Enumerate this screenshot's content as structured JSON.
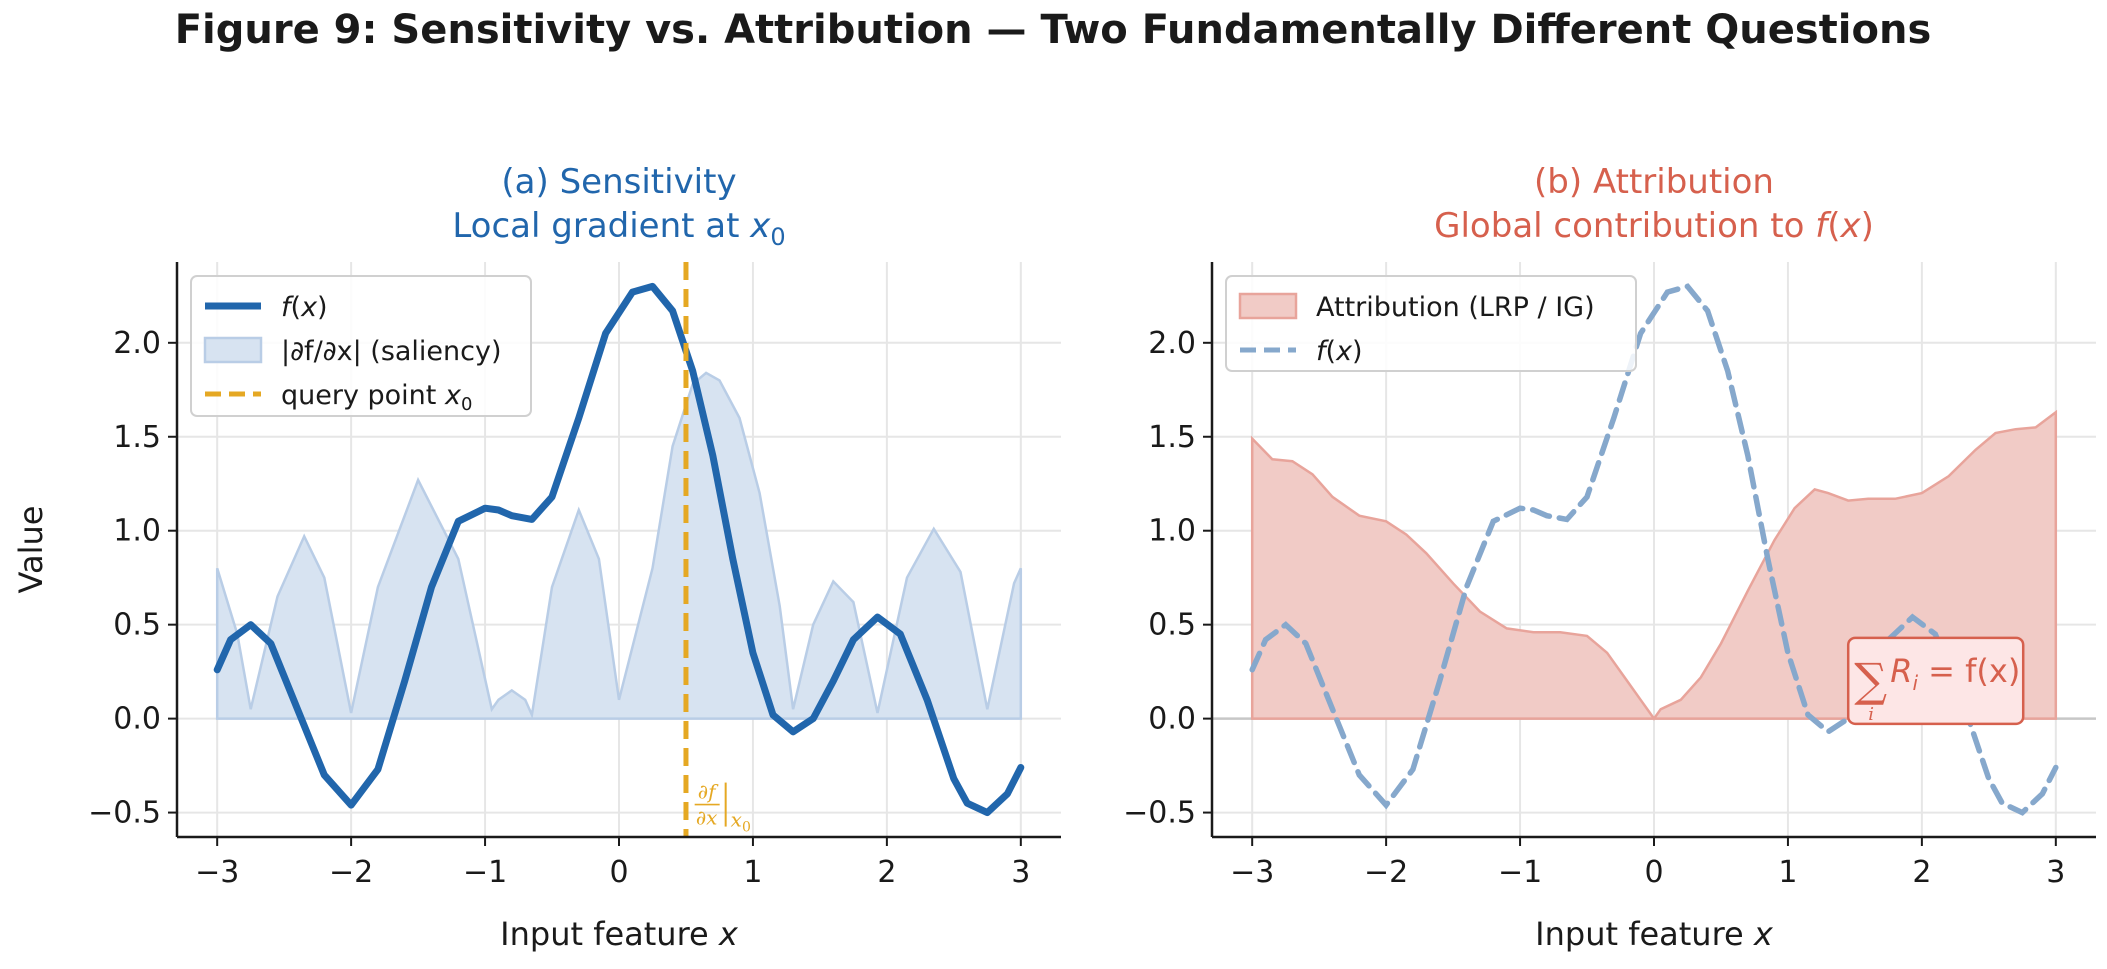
{
  "figure_title": "Figure 9: Sensitivity vs. Attribution — Two Fundamentally Different Questions",
  "colors": {
    "f_line": "#2166ac",
    "saliency_fill": "#d7e3f1",
    "saliency_edge": "#b9cde6",
    "query_line": "#e5a823",
    "attr_fill": "#f1cbc6",
    "attr_edge": "#e8a49b",
    "f_dashed": "#86a8cc",
    "title_a": "#2166ac",
    "title_b": "#d6604d",
    "box_fill": "#fde6e6",
    "box_edge": "#d6604d"
  },
  "chart_data": [
    {
      "type": "line",
      "panel": "a",
      "title_line1": "(a) Sensitivity",
      "title_line2_text": "Local gradient at ",
      "title_line2_math": "x",
      "title_line2_sub": "0",
      "xlabel_text": "Input feature ",
      "xlabel_math": "x",
      "ylabel": "Value",
      "xlim": [
        -3.3,
        3.3
      ],
      "ylim": [
        -0.63,
        2.43
      ],
      "xticks": [
        -3,
        -2,
        -1,
        0,
        1,
        2,
        3
      ],
      "xtick_labels": [
        "−3",
        "−2",
        "−1",
        "0",
        "1",
        "2",
        "3"
      ],
      "yticks": [
        -0.5,
        0.0,
        0.5,
        1.0,
        1.5,
        2.0
      ],
      "ytick_labels": [
        "−0.5",
        "0.0",
        "0.5",
        "1.0",
        "1.5",
        "2.0"
      ],
      "grid": true,
      "legend_position": "top-left",
      "legend": [
        {
          "label": "f(x)",
          "style": "line"
        },
        {
          "label": "|∂f/∂x| (saliency)",
          "style": "fill"
        },
        {
          "label": "query point x",
          "label_sub": "0",
          "style": "dashed"
        }
      ],
      "series": [
        {
          "name": "f(x)",
          "style": "solid",
          "x": [
            -3.0,
            -2.9,
            -2.75,
            -2.6,
            -2.4,
            -2.2,
            -2.0,
            -1.8,
            -1.6,
            -1.4,
            -1.2,
            -1.0,
            -0.9,
            -0.8,
            -0.65,
            -0.5,
            -0.3,
            -0.1,
            0.1,
            0.25,
            0.4,
            0.55,
            0.7,
            0.85,
            1.0,
            1.15,
            1.3,
            1.45,
            1.6,
            1.75,
            1.93,
            2.1,
            2.3,
            2.5,
            2.6,
            2.75,
            2.9,
            3.0
          ],
          "values": [
            0.26,
            0.42,
            0.5,
            0.4,
            0.05,
            -0.3,
            -0.46,
            -0.27,
            0.2,
            0.7,
            1.05,
            1.12,
            1.11,
            1.08,
            1.06,
            1.18,
            1.6,
            2.05,
            2.27,
            2.3,
            2.17,
            1.85,
            1.4,
            0.85,
            0.35,
            0.02,
            -0.07,
            0.0,
            0.2,
            0.42,
            0.54,
            0.45,
            0.1,
            -0.32,
            -0.45,
            -0.5,
            -0.4,
            -0.26
          ]
        },
        {
          "name": "|∂f/∂x| (saliency)",
          "style": "fill",
          "x": [
            -3.0,
            -2.85,
            -2.75,
            -2.55,
            -2.35,
            -2.2,
            -2.0,
            -1.8,
            -1.5,
            -1.2,
            -0.95,
            -0.9,
            -0.8,
            -0.7,
            -0.65,
            -0.5,
            -0.3,
            -0.15,
            0.0,
            0.25,
            0.4,
            0.55,
            0.65,
            0.75,
            0.9,
            1.05,
            1.2,
            1.3,
            1.45,
            1.6,
            1.75,
            1.93,
            2.15,
            2.35,
            2.55,
            2.75,
            2.95,
            3.0
          ],
          "values": [
            0.8,
            0.45,
            0.05,
            0.65,
            0.97,
            0.75,
            0.03,
            0.7,
            1.27,
            0.85,
            0.05,
            0.1,
            0.15,
            0.1,
            0.02,
            0.7,
            1.11,
            0.85,
            0.1,
            0.8,
            1.45,
            1.78,
            1.84,
            1.8,
            1.6,
            1.2,
            0.6,
            0.05,
            0.5,
            0.73,
            0.62,
            0.03,
            0.75,
            1.01,
            0.78,
            0.05,
            0.72,
            0.8
          ]
        }
      ],
      "query_x": 0.5,
      "annotation": {
        "num": "∂f",
        "den": "∂x",
        "sub": "x",
        "sub2": "0",
        "x": 0.55,
        "y": -0.5
      }
    },
    {
      "type": "area",
      "panel": "b",
      "title_line1": "(b) Attribution",
      "title_line2_text": "Global contribution to ",
      "title_line2_math": "f",
      "title_line2_tail": "(x)",
      "xlabel_text": "Input feature ",
      "xlabel_math": "x",
      "xlim": [
        -3.3,
        3.3
      ],
      "ylim": [
        -0.63,
        2.43
      ],
      "xticks": [
        -3,
        -2,
        -1,
        0,
        1,
        2,
        3
      ],
      "xtick_labels": [
        "−3",
        "−2",
        "−1",
        "0",
        "1",
        "2",
        "3"
      ],
      "yticks": [
        -0.5,
        0.0,
        0.5,
        1.0,
        1.5,
        2.0
      ],
      "ytick_labels": [
        "−0.5",
        "0.0",
        "0.5",
        "1.0",
        "1.5",
        "2.0"
      ],
      "grid": true,
      "legend_position": "top-left",
      "legend": [
        {
          "label": "Attribution (LRP / IG)",
          "style": "fill"
        },
        {
          "label": "f(x)",
          "style": "dashed"
        }
      ],
      "series": [
        {
          "name": "Attribution (LRP / IG)",
          "style": "fill",
          "x": [
            -3.0,
            -2.85,
            -2.7,
            -2.55,
            -2.4,
            -2.2,
            -2.0,
            -1.85,
            -1.7,
            -1.5,
            -1.3,
            -1.1,
            -0.9,
            -0.7,
            -0.5,
            -0.35,
            -0.2,
            -0.1,
            0.0,
            0.05,
            0.2,
            0.35,
            0.5,
            0.7,
            0.9,
            1.05,
            1.2,
            1.3,
            1.45,
            1.6,
            1.8,
            2.0,
            2.2,
            2.4,
            2.55,
            2.7,
            2.85,
            3.0
          ],
          "values": [
            1.49,
            1.38,
            1.37,
            1.3,
            1.18,
            1.08,
            1.05,
            0.98,
            0.88,
            0.72,
            0.57,
            0.48,
            0.46,
            0.46,
            0.44,
            0.35,
            0.2,
            0.1,
            0.0,
            0.05,
            0.1,
            0.22,
            0.4,
            0.68,
            0.95,
            1.12,
            1.22,
            1.2,
            1.16,
            1.17,
            1.17,
            1.2,
            1.29,
            1.43,
            1.52,
            1.54,
            1.55,
            1.63
          ]
        },
        {
          "name": "f(x)",
          "style": "dashed",
          "x": [
            -3.0,
            -2.9,
            -2.75,
            -2.6,
            -2.4,
            -2.2,
            -2.0,
            -1.8,
            -1.6,
            -1.4,
            -1.2,
            -1.0,
            -0.9,
            -0.8,
            -0.65,
            -0.5,
            -0.3,
            -0.1,
            0.1,
            0.25,
            0.4,
            0.55,
            0.7,
            0.85,
            1.0,
            1.15,
            1.3,
            1.45,
            1.6,
            1.75,
            1.93,
            2.1,
            2.3,
            2.5,
            2.6,
            2.75,
            2.9,
            3.0
          ],
          "values": [
            0.26,
            0.42,
            0.5,
            0.4,
            0.05,
            -0.3,
            -0.46,
            -0.27,
            0.2,
            0.7,
            1.05,
            1.12,
            1.11,
            1.08,
            1.06,
            1.18,
            1.6,
            2.05,
            2.27,
            2.3,
            2.17,
            1.85,
            1.4,
            0.85,
            0.35,
            0.02,
            -0.07,
            0.0,
            0.2,
            0.42,
            0.54,
            0.45,
            0.1,
            -0.32,
            -0.45,
            -0.5,
            -0.4,
            -0.26
          ]
        }
      ],
      "box": {
        "sigma": "∑",
        "sub": "i",
        "rhs": "R",
        "rhs_sub": "i",
        "eq": " = f(x)",
        "x": 1.45,
        "y": 0.1
      }
    }
  ]
}
